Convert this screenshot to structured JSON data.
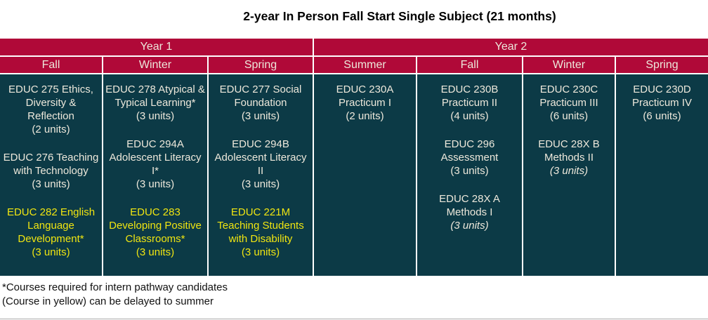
{
  "title": "2-year In Person Fall Start Single Subject (21 months)",
  "colors": {
    "header_red": "#B00938",
    "cell_teal": "#0C3A46",
    "text_cream": "#EDE8DB",
    "highlight_yellow": "#F0E511",
    "title_black": "#000000",
    "footnote_black": "#111111",
    "bottom_line_gray": "#ABABAB"
  },
  "table": {
    "year_headers": [
      {
        "label": "Year 1",
        "colspan": 3
      },
      {
        "label": "Year 2",
        "colspan": 4
      }
    ],
    "semester_headers": [
      "Fall",
      "Winter",
      "Spring",
      "Summer",
      "Fall",
      "Winter",
      "Spring"
    ],
    "columns": [
      {
        "year": "Year 1",
        "semester": "Fall",
        "courses": [
          {
            "name": "EDUC 275 Ethics, Diversity & Reflection",
            "units": "(2 units)"
          },
          {
            "name": "EDUC 276 Teaching with Technology",
            "units": "(3 units)"
          },
          {
            "name": "EDUC 282 English Language Development*",
            "units": "(3 units)",
            "highlight": true
          }
        ]
      },
      {
        "year": "Year 1",
        "semester": "Winter",
        "courses": [
          {
            "name": "EDUC 278 Atypical & Typical Learning*",
            "units": "(3 units)"
          },
          {
            "name": "EDUC 294A Adolescent Literacy I*",
            "units": "(3 units)"
          },
          {
            "name": "EDUC 283 Developing Positive Classrooms*",
            "units": "(3 units)",
            "highlight": true
          }
        ]
      },
      {
        "year": "Year 1",
        "semester": "Spring",
        "courses": [
          {
            "name": "EDUC 277 Social Foundation",
            "units": "(3 units)"
          },
          {
            "name": "EDUC 294B Adolescent Literacy II",
            "units": "(3 units)"
          },
          {
            "name": "EDUC 221M Teaching Students with Disability",
            "units": "(3 units)",
            "highlight": true
          }
        ]
      },
      {
        "year": "Year 2",
        "semester": "Summer",
        "courses": [
          {
            "name": "EDUC 230A Practicum I",
            "units": "(2 units)"
          }
        ]
      },
      {
        "year": "Year 2",
        "semester": "Fall",
        "courses": [
          {
            "name": "EDUC 230B Practicum II",
            "units": "(4 units)"
          },
          {
            "name": "EDUC 296 Assessment",
            "units": "(3 units)"
          },
          {
            "name": "EDUC 28X A Methods I",
            "units": "(3 units)",
            "units_italic": true
          }
        ]
      },
      {
        "year": "Year 2",
        "semester": "Winter",
        "courses": [
          {
            "name": "EDUC 230C Practicum III",
            "units": "(6 units)"
          },
          {
            "name": "EDUC 28X B Methods II",
            "units": "(3 units)",
            "units_italic": true
          }
        ]
      },
      {
        "year": "Year 2",
        "semester": "Spring",
        "courses": [
          {
            "name": "EDUC 230D Practicum IV",
            "units": "(6 units)"
          }
        ]
      }
    ]
  },
  "footnotes": [
    "*Courses required for intern pathway candidates",
    "(Course in yellow) can be delayed to summer"
  ]
}
